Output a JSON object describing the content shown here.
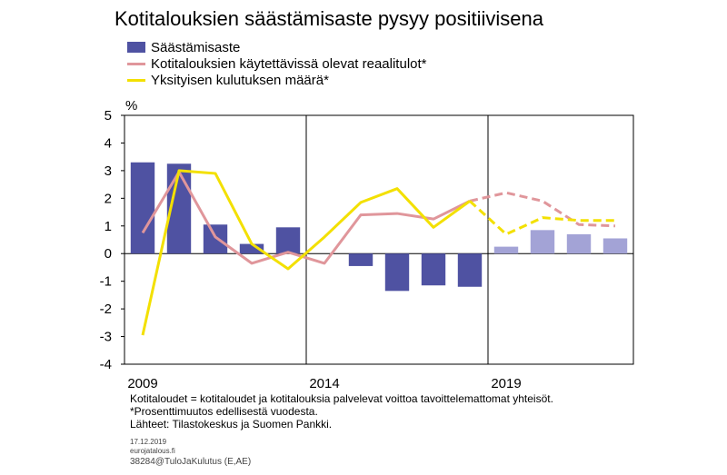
{
  "title": "Kotitalouksien säästämisaste pysyy positiivisena",
  "unit_label": "%",
  "legend": [
    {
      "label": "Säästämisaste",
      "kind": "bar",
      "color": "#4f52a2"
    },
    {
      "label": "Kotitalouksien käytettävissä olevat reaalitulot*",
      "kind": "line",
      "color": "#e0969b"
    },
    {
      "label": "Yksityisen kulutuksen määrä*",
      "kind": "line",
      "color": "#f3e000"
    }
  ],
  "notes": [
    "Kotitaloudet = kotitaloudet ja kotitalouksia palvelevat voittoa tavoittelemattomat yhteisöt.",
    "*Prosenttimuutos edellisestä vuodesta.",
    "Lähteet: Tilastokeskus ja Suomen Pankki."
  ],
  "meta": {
    "date": "17.12.2019",
    "site": "eurojatalous.fi",
    "code": "38284@TuloJaKulutus  (E,AE)"
  },
  "chart_data": {
    "type": "bar",
    "x": [
      2009,
      2010,
      2011,
      2012,
      2013,
      2014,
      2015,
      2016,
      2017,
      2018,
      2019,
      2020,
      2021,
      2022
    ],
    "x_tick_labels": [
      "2009",
      "2014",
      "2019"
    ],
    "x_tick_positions": [
      2009,
      2014,
      2019
    ],
    "ylim": [
      -4,
      5
    ],
    "yticks": [
      5,
      4,
      3,
      2,
      1,
      0,
      -1,
      -2,
      -3,
      -4
    ],
    "ylabel": "%",
    "forecast_start": 2019,
    "colors": {
      "bar": "#4f52a2",
      "bar_forecast": "#a3a3d6",
      "income": "#e0969b",
      "consumption": "#f3e000"
    },
    "series": [
      {
        "name": "Säästämisaste",
        "kind": "bar",
        "values": [
          3.3,
          3.25,
          1.05,
          0.35,
          0.95,
          null,
          -0.45,
          -1.35,
          -1.15,
          -1.2,
          0.25,
          0.85,
          0.7,
          0.55
        ]
      },
      {
        "name": "Kotitalouksien käytettävissä olevat reaalitulot*",
        "kind": "line",
        "values": [
          0.75,
          2.95,
          0.6,
          -0.35,
          0.05,
          -0.35,
          1.4,
          1.45,
          1.25,
          1.9,
          2.2,
          1.9,
          1.05,
          1.0
        ],
        "dashed_from": 2018
      },
      {
        "name": "Yksityisen kulutuksen määrä*",
        "kind": "line",
        "values": [
          -2.95,
          3.0,
          2.9,
          0.35,
          -0.55,
          0.6,
          1.85,
          2.35,
          0.95,
          1.9,
          0.7,
          1.3,
          1.2,
          1.2
        ],
        "dashed_from": 2018
      }
    ]
  }
}
